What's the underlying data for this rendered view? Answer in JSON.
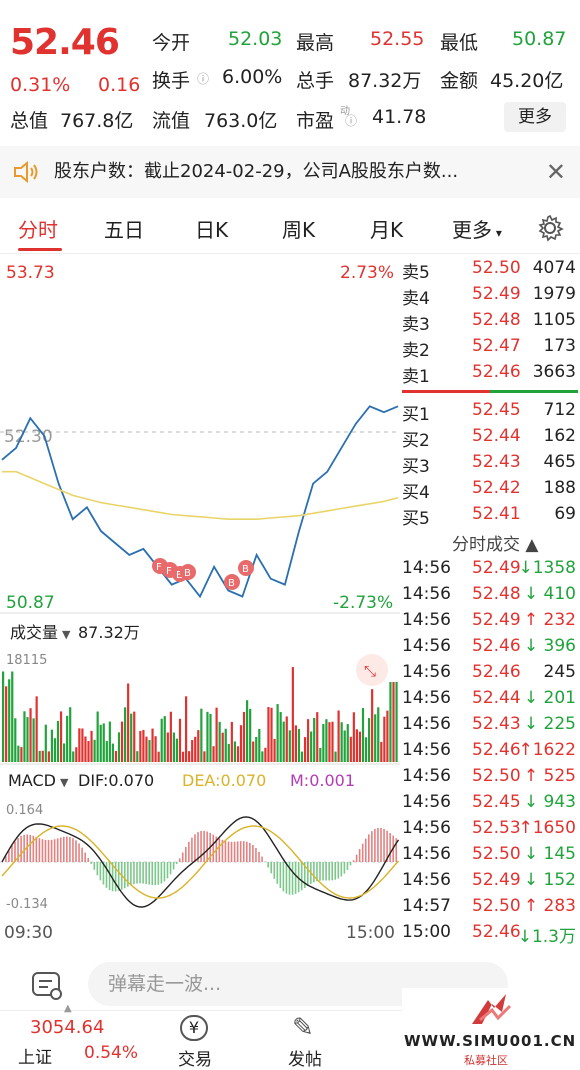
{
  "quote": {
    "price": "52.46",
    "change_pct": "0.31%",
    "change": "0.16",
    "stats": [
      {
        "label": "今开",
        "value": "52.03"
      },
      {
        "label": "最高",
        "value": "52.55"
      },
      {
        "label": "最低",
        "value": "50.87"
      },
      {
        "label": "换手",
        "value": "6.00%"
      },
      {
        "label": "总手",
        "value": "87.32万"
      },
      {
        "label": "金额",
        "value": "45.20亿"
      },
      {
        "label": "总值",
        "value": "767.8亿"
      },
      {
        "label": "流值",
        "value": "763.0亿"
      },
      {
        "label": "市盈",
        "value": "41.78"
      }
    ],
    "pe_superscript": "动",
    "more_label": "更多"
  },
  "notice": {
    "text": "股东户数：截止2024-02-29，公司A股股东户数..."
  },
  "tabs": [
    {
      "label": "分时",
      "active": true
    },
    {
      "label": "五日",
      "active": false
    },
    {
      "label": "日K",
      "active": false
    },
    {
      "label": "周K",
      "active": false
    },
    {
      "label": "月K",
      "active": false
    },
    {
      "label": "更多",
      "active": false
    }
  ],
  "chart": {
    "price_high": "53.73",
    "price_low": "50.87",
    "pct_high": "2.73%",
    "pct_low": "-2.73%",
    "ref_price": "52.30",
    "volume_label": "成交量",
    "volume_value": "87.32万",
    "volume_max": "18115",
    "macd_label": "MACD",
    "dif": "DIF:0.070",
    "dea": "DEA:0.070",
    "m": "M:0.001",
    "macd_top": "0.164",
    "macd_bottom": "-0.134",
    "time_start": "09:30",
    "time_end": "15:00",
    "markers": [
      "F",
      "F",
      "E",
      "B",
      "B",
      "B"
    ]
  },
  "chart_data": {
    "type": "line",
    "series": [
      {
        "values": [
          52.1,
          52.2,
          52.45,
          52.3,
          51.9,
          51.6,
          51.7,
          51.5,
          51.4,
          51.3,
          51.35,
          51.2,
          51.05,
          51.1,
          50.95,
          51.2,
          51.0,
          50.95,
          51.3,
          51.1,
          51.05,
          51.5,
          51.9,
          52.0,
          52.2,
          52.4,
          52.55,
          52.5,
          52.55
        ]
      },
      {
        "values": [
          52.0,
          52.0,
          51.95,
          51.9,
          51.85,
          51.8,
          51.77,
          51.74,
          51.72,
          51.7,
          51.68,
          51.66,
          51.64,
          51.63,
          51.62,
          51.61,
          51.6,
          51.6,
          51.6,
          51.61,
          51.62,
          51.63,
          51.65,
          51.67,
          51.69,
          51.71,
          51.73,
          51.75,
          51.78
        ]
      }
    ],
    "ylim": [
      50.87,
      53.73
    ]
  },
  "order_book": {
    "asks": [
      {
        "label": "卖5",
        "price": "52.50",
        "vol": "4074"
      },
      {
        "label": "卖4",
        "price": "52.49",
        "vol": "1979"
      },
      {
        "label": "卖3",
        "price": "52.48",
        "vol": "1105"
      },
      {
        "label": "卖2",
        "price": "52.47",
        "vol": "173"
      },
      {
        "label": "卖1",
        "price": "52.46",
        "vol": "3663"
      }
    ],
    "bids": [
      {
        "label": "买1",
        "price": "52.45",
        "vol": "712"
      },
      {
        "label": "买2",
        "price": "52.44",
        "vol": "162"
      },
      {
        "label": "买3",
        "price": "52.43",
        "vol": "465"
      },
      {
        "label": "买4",
        "price": "52.42",
        "vol": "188"
      },
      {
        "label": "买5",
        "price": "52.41",
        "vol": "69"
      }
    ],
    "trades_title": "分时成交",
    "trades": [
      {
        "time": "14:56",
        "price": "52.49",
        "vol": "↓1358",
        "dir": "down"
      },
      {
        "time": "14:56",
        "price": "52.48",
        "vol": "↓ 410",
        "dir": "down"
      },
      {
        "time": "14:56",
        "price": "52.49",
        "vol": "↑ 232",
        "dir": "up"
      },
      {
        "time": "14:56",
        "price": "52.46",
        "vol": "↓ 396",
        "dir": "down"
      },
      {
        "time": "14:56",
        "price": "52.46",
        "vol": "245",
        "dir": "none"
      },
      {
        "time": "14:56",
        "price": "52.44",
        "vol": "↓ 201",
        "dir": "down"
      },
      {
        "time": "14:56",
        "price": "52.43",
        "vol": "↓ 225",
        "dir": "down"
      },
      {
        "time": "14:56",
        "price": "52.46",
        "vol": "↑1622",
        "dir": "up"
      },
      {
        "time": "14:56",
        "price": "52.50",
        "vol": "↑ 525",
        "dir": "up"
      },
      {
        "time": "14:56",
        "price": "52.45",
        "vol": "↓ 943",
        "dir": "down"
      },
      {
        "time": "14:56",
        "price": "52.53",
        "vol": "↑1650",
        "dir": "up"
      },
      {
        "time": "14:56",
        "price": "52.50",
        "vol": "↓ 145",
        "dir": "down"
      },
      {
        "time": "14:56",
        "price": "52.49",
        "vol": "↓ 152",
        "dir": "down"
      },
      {
        "time": "14:57",
        "price": "52.50",
        "vol": "↑ 283",
        "dir": "up"
      },
      {
        "time": "15:00",
        "price": "52.46",
        "vol": "↓1.3万",
        "dir": "down"
      }
    ]
  },
  "comment": {
    "placeholder": "弹幕走一波..."
  },
  "bottom": {
    "index_value": "3054.64",
    "index_name": "上证",
    "index_pct": "0.54%",
    "trade_label": "交易",
    "post_label": "发帖"
  },
  "watermark": {
    "site": "WWW.SIMU001.CN",
    "sub": "私募社区"
  },
  "colors": {
    "up": "#e0322f",
    "down": "#21a33c",
    "line": "#2a6fb0",
    "avg": "#e8d56a"
  }
}
